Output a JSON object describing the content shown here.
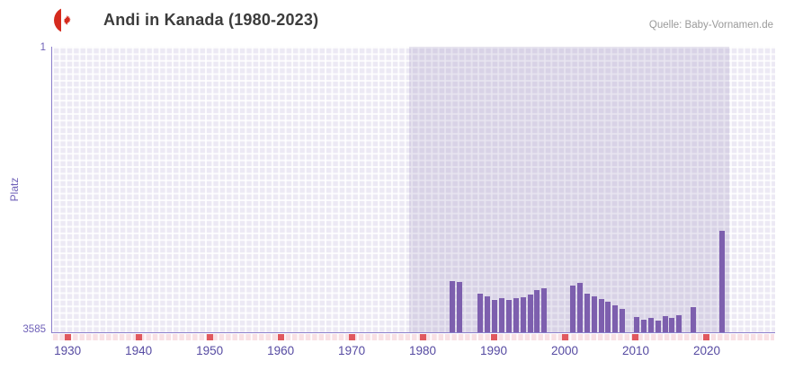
{
  "header": {
    "title": "Andi in Kanada (1980-2023)",
    "source": "Quelle: Baby-Vornamen.de",
    "flag": "canada-flag-icon"
  },
  "axes": {
    "y_label": "Platz",
    "y_top_tick": "1",
    "y_bottom_tick": "3585"
  },
  "chart_data": {
    "type": "bar",
    "title": "Andi in Kanada (1980-2023)",
    "xlabel": "",
    "ylabel": "Platz",
    "y_axis_inverted": true,
    "ylim": [
      1,
      3585
    ],
    "x_domain": [
      1927.7,
      2029.5
    ],
    "x_ticks": [
      1930,
      1940,
      1950,
      1960,
      1970,
      1980,
      1990,
      2000,
      2010,
      2020
    ],
    "highlight_band_years": [
      1978,
      2023
    ],
    "grid": true,
    "legend": false,
    "points": [
      {
        "year": 1984,
        "rank": 2940
      },
      {
        "year": 1985,
        "rank": 2955
      },
      {
        "year": 1988,
        "rank": 3105
      },
      {
        "year": 1989,
        "rank": 3135
      },
      {
        "year": 1990,
        "rank": 3180
      },
      {
        "year": 1991,
        "rank": 3155
      },
      {
        "year": 1992,
        "rank": 3175
      },
      {
        "year": 1993,
        "rank": 3155
      },
      {
        "year": 1994,
        "rank": 3140
      },
      {
        "year": 1995,
        "rank": 3115
      },
      {
        "year": 1996,
        "rank": 3050
      },
      {
        "year": 1997,
        "rank": 3035
      },
      {
        "year": 2001,
        "rank": 2995
      },
      {
        "year": 2002,
        "rank": 2970
      },
      {
        "year": 2003,
        "rank": 3100
      },
      {
        "year": 2004,
        "rank": 3135
      },
      {
        "year": 2005,
        "rank": 3165
      },
      {
        "year": 2006,
        "rank": 3205
      },
      {
        "year": 2007,
        "rank": 3250
      },
      {
        "year": 2008,
        "rank": 3290
      },
      {
        "year": 2010,
        "rank": 3395
      },
      {
        "year": 2011,
        "rank": 3425
      },
      {
        "year": 2012,
        "rank": 3405
      },
      {
        "year": 2013,
        "rank": 3440
      },
      {
        "year": 2014,
        "rank": 3385
      },
      {
        "year": 2015,
        "rank": 3410
      },
      {
        "year": 2016,
        "rank": 3370
      },
      {
        "year": 2018,
        "rank": 3270
      },
      {
        "year": 2022,
        "rank": 2310
      }
    ],
    "colors": {
      "bar": "#7d5fae",
      "plot_bg": "#ece9f4",
      "band_bg": "#6e5fa229",
      "strip_bg": "#f8e0e4",
      "tick_mark": "#e0585e",
      "axis_text": "#6f61b8",
      "axis_text2": "#564ba2",
      "title_text": "#3c3c3c",
      "source_text": "#9a9a9a",
      "flag_red": "#d52b1e"
    }
  }
}
